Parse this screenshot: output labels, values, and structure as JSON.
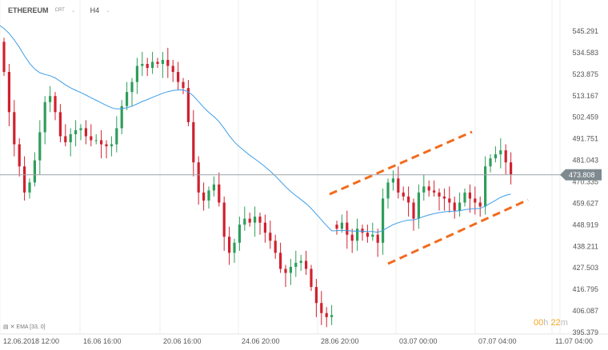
{
  "header": {
    "symbol": "ETHEREUM",
    "type": "CRT",
    "timeframe": "H4"
  },
  "indicator": {
    "label": "EMA",
    "params": "[33, 0]"
  },
  "current_price": "473.808",
  "timer": {
    "hours": "00",
    "h": "h",
    "minutes": "22",
    "m": "m"
  },
  "colors": {
    "up": "#2e9e5a",
    "down": "#d0212f",
    "ema": "#3d9ee9",
    "channel": "#f26b1d",
    "price_line": "#9aa3a8"
  },
  "chart_data": {
    "type": "candlestick",
    "y_ticks": [
      "545.291",
      "534.583",
      "523.875",
      "513.167",
      "502.459",
      "491.751",
      "481.043",
      "470.335",
      "459.627",
      "448.919",
      "438.211",
      "427.503",
      "416.795",
      "406.087",
      "395.379"
    ],
    "ylim": [
      395.379,
      545.291
    ],
    "x_ticks": [
      "12.06.2018  12:00",
      "16.06  16:00",
      "20.06  16:00",
      "24.06  20:00",
      "28.06  20:00",
      "03.07  00:00",
      "07.07  04:00",
      "11.07  04:00"
    ],
    "first_open": 540,
    "ema_seed": 548,
    "closes": [
      525,
      505,
      489,
      478,
      465,
      470,
      481,
      495,
      510,
      513,
      505,
      493,
      490,
      494,
      496,
      497,
      493,
      491,
      491,
      489,
      488,
      489,
      497,
      508,
      515,
      520,
      528,
      529,
      527,
      530,
      529,
      531,
      528,
      525,
      520,
      517,
      500,
      480,
      465,
      461,
      466,
      469,
      460,
      443,
      435,
      440,
      449,
      452,
      450,
      453,
      450,
      445,
      441,
      435,
      427,
      425,
      428,
      430,
      431,
      427,
      418,
      410,
      405,
      403,
      404,
      447,
      450,
      444,
      441,
      447,
      445,
      443,
      444,
      440,
      462,
      470,
      472,
      465,
      463,
      460,
      452,
      465,
      468,
      466,
      465,
      463,
      462,
      460,
      456,
      460,
      465,
      462,
      460,
      458,
      478,
      482,
      484,
      486,
      480,
      474
    ]
  }
}
